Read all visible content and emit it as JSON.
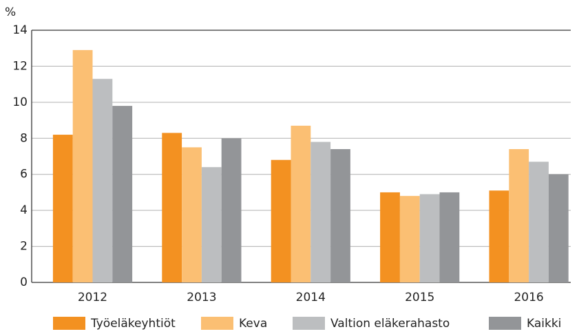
{
  "chart_data": {
    "type": "bar",
    "y_label": "%",
    "categories": [
      "2012",
      "2013",
      "2014",
      "2015",
      "2016"
    ],
    "series": [
      {
        "name": "Työeläkeyhtiöt",
        "color": "#f39121",
        "values": [
          8.2,
          8.3,
          6.8,
          5.0,
          5.1
        ]
      },
      {
        "name": "Keva",
        "color": "#fbbf73",
        "values": [
          12.9,
          7.5,
          8.7,
          4.8,
          7.4
        ]
      },
      {
        "name": "Valtion eläkerahasto",
        "color": "#bcbec0",
        "values": [
          11.3,
          6.4,
          7.8,
          4.9,
          6.7
        ]
      },
      {
        "name": "Kaikki",
        "color": "#939598",
        "values": [
          9.8,
          8.0,
          7.4,
          5.0,
          6.0
        ]
      }
    ],
    "ylim": [
      0,
      14
    ],
    "yticks": [
      0,
      2,
      4,
      6,
      8,
      10,
      12,
      14
    ],
    "grid": true,
    "legend": "bottom"
  }
}
